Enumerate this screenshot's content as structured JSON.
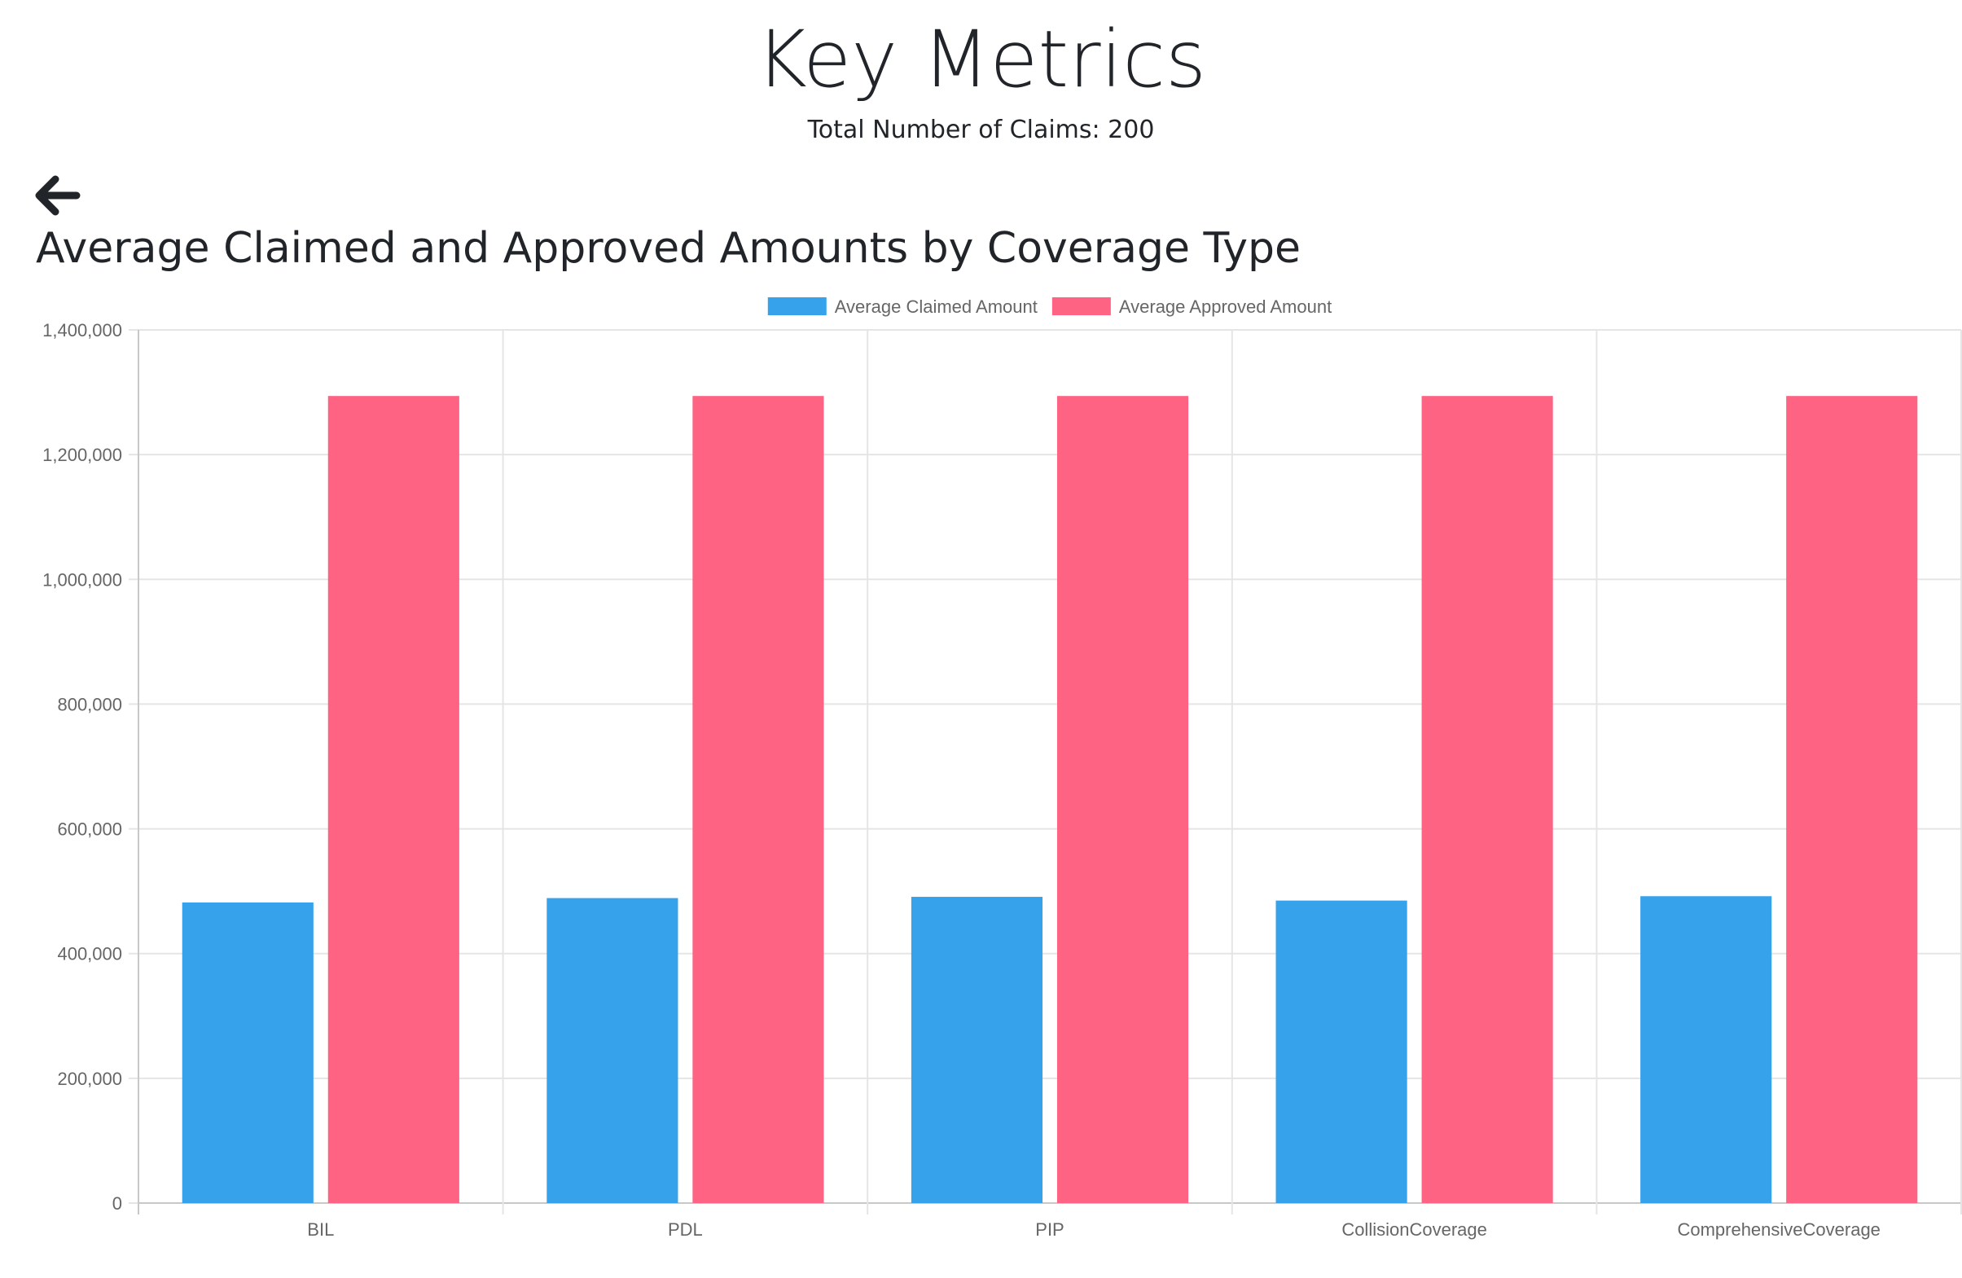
{
  "header": {
    "title": "Key Metrics",
    "subtitle": "Total Number of Claims: 200",
    "back_icon": "arrow-left-icon"
  },
  "chart_data": {
    "type": "bar",
    "title": "Average Claimed and Approved Amounts by Coverage Type",
    "xlabel": "",
    "ylabel": "",
    "categories": [
      "BIL",
      "PDL",
      "PIP",
      "CollisionCoverage",
      "ComprehensiveCoverage"
    ],
    "series": [
      {
        "name": "Average Claimed Amount",
        "color": "#36A2EB",
        "values": [
          482000,
          489000,
          491000,
          485000,
          492000
        ]
      },
      {
        "name": "Average Approved Amount",
        "color": "#FF6384",
        "values": [
          1294000,
          1294000,
          1294000,
          1294000,
          1294000
        ]
      }
    ],
    "ylim": [
      0,
      1400000
    ],
    "yticks": [
      0,
      200000,
      400000,
      600000,
      800000,
      1000000,
      1200000,
      1400000
    ],
    "ytick_labels": [
      "0",
      "200,000",
      "400,000",
      "600,000",
      "800,000",
      "1,000,000",
      "1,200,000",
      "1,400,000"
    ],
    "legend_position": "top-center",
    "grid": true
  }
}
